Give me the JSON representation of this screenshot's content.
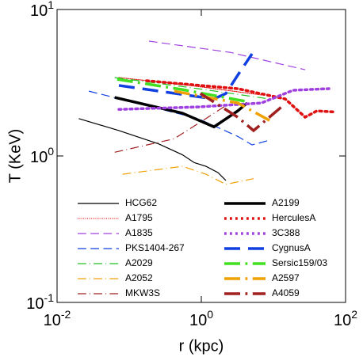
{
  "chart_data": {
    "type": "line",
    "xlabel": "r (kpc)",
    "ylabel": "T (KeV)",
    "xscale": "log",
    "yscale": "log",
    "xlim": [
      0.01,
      100
    ],
    "ylim": [
      0.1,
      10
    ],
    "xticks": [
      {
        "value": 0.01,
        "label": "10^-2"
      },
      {
        "value": 1,
        "label": "10^0"
      },
      {
        "value": 100,
        "label": "10^2"
      }
    ],
    "yticks": [
      {
        "value": 0.1,
        "label": "10^-1"
      },
      {
        "value": 1,
        "label": "10^0"
      },
      {
        "value": 10,
        "label": "10^1"
      }
    ],
    "series": [
      {
        "name": "HCG62",
        "color": "#000000",
        "style": "solid",
        "width": 1.2,
        "x": [
          0.02,
          0.072,
          0.255,
          0.545,
          0.8,
          1.16,
          1.7,
          2.19
        ],
        "values": [
          1.8,
          1.49,
          1.21,
          1.02,
          0.9,
          0.85,
          0.77,
          0.68
        ]
      },
      {
        "name": "A1795",
        "color": "#e01010",
        "style": "dotted",
        "width": 1.2,
        "x": [
          0.072,
          0.7,
          6.8
        ],
        "values": [
          3.43,
          3.03,
          2.61
        ]
      },
      {
        "name": "A1835",
        "color": "#a040e0",
        "style": "dashed",
        "width": 1.2,
        "x": [
          0.188,
          2.49,
          27.5
        ],
        "values": [
          6.08,
          5.1,
          3.88
        ]
      },
      {
        "name": "PKS1404-267",
        "color": "#1040e0",
        "style": "dashed",
        "width": 1.2,
        "x": [
          0.0276,
          0.9,
          3.2,
          5.05,
          8.8
        ],
        "values": [
          2.77,
          1.8,
          1.36,
          1.19,
          1.28
        ]
      },
      {
        "name": "A2029",
        "color": "#20c020",
        "style": "dashdot",
        "width": 1.2,
        "x": [
          0.063,
          0.9,
          8.8
        ],
        "values": [
          3.43,
          2.88,
          2.45
        ]
      },
      {
        "name": "A2052",
        "color": "#f0a000",
        "style": "dashdot",
        "width": 1.2,
        "x": [
          0.081,
          0.55,
          1.16,
          2.19,
          5.3
        ],
        "values": [
          0.75,
          0.85,
          0.75,
          0.64,
          0.7
        ]
      },
      {
        "name": "MKW3S",
        "color": "#a02020",
        "style": "dashdot",
        "width": 1.2,
        "x": [
          0.063,
          0.42,
          1.16,
          2.49
        ],
        "values": [
          1.06,
          1.31,
          1.8,
          2.3
        ]
      },
      {
        "name": "A2199",
        "color": "#000000",
        "style": "solid",
        "width": 3.5,
        "x": [
          0.063,
          0.545,
          1.5,
          3.2,
          4.33
        ],
        "values": [
          2.51,
          1.96,
          1.58,
          2.03,
          2.3
        ]
      },
      {
        "name": "HerculesA",
        "color": "#e01010",
        "style": "dotted",
        "width": 3.5,
        "x": [
          0.174,
          3.2,
          14.6,
          27.5,
          40,
          66.7
        ],
        "values": [
          3.26,
          2.88,
          2.45,
          1.84,
          2.03,
          2.0
        ]
      },
      {
        "name": "3C388",
        "color": "#a040e0",
        "style": "dotted",
        "width": 3.5,
        "x": [
          0.072,
          0.9,
          6.8,
          18.8,
          58.8
        ],
        "values": [
          2.08,
          2.16,
          2.3,
          2.81,
          2.88
        ]
      },
      {
        "name": "CygnusA",
        "color": "#1040e0",
        "style": "dashed",
        "width": 3.5,
        "x": [
          0.072,
          1.5,
          2.19,
          3.2,
          5.05
        ],
        "values": [
          3.03,
          2.45,
          2.67,
          3.56,
          4.98
        ]
      },
      {
        "name": "Sersic159/03",
        "color": "#40e020",
        "style": "dashdot",
        "width": 3.5,
        "x": [
          0.068,
          0.545,
          4.12
        ],
        "values": [
          3.34,
          2.84,
          2.36
        ]
      },
      {
        "name": "A2597",
        "color": "#f0a000",
        "style": "dashdot",
        "width": 3.5,
        "x": [
          0.42,
          3.2,
          10
        ],
        "values": [
          2.77,
          2.3,
          1.69
        ]
      },
      {
        "name": "A4059",
        "color": "#a02020",
        "style": "dashdot",
        "width": 3.5,
        "x": [
          0.97,
          3.2,
          5.3,
          8.8,
          12.9
        ],
        "values": [
          2.67,
          1.84,
          1.49,
          1.84,
          2.16
        ]
      }
    ]
  }
}
